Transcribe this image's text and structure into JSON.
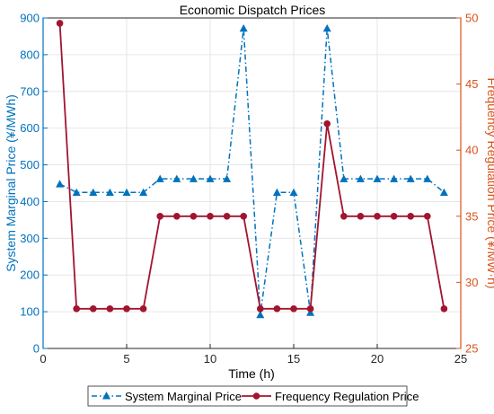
{
  "chart_data": {
    "type": "line",
    "title": "Economic Dispatch Prices",
    "xlabel": "Time (h)",
    "ylabel_left": "System Marginal Price (¥/MWh)",
    "ylabel_right": "Frequency Regulation Price (¥/MW·h)",
    "xlim": [
      0,
      25
    ],
    "ylim_left": [
      0,
      900
    ],
    "ylim_right": [
      25,
      50
    ],
    "x_ticks": [
      0,
      5,
      10,
      15,
      20,
      25
    ],
    "y_ticks_left": [
      0,
      100,
      200,
      300,
      400,
      500,
      600,
      700,
      800,
      900
    ],
    "y_ticks_right": [
      25,
      30,
      35,
      40,
      45,
      50
    ],
    "grid": true,
    "legend_position": "bottom",
    "x": [
      1,
      2,
      3,
      4,
      5,
      6,
      7,
      8,
      9,
      10,
      11,
      12,
      13,
      14,
      15,
      16,
      17,
      18,
      19,
      20,
      21,
      22,
      23,
      24
    ],
    "series": [
      {
        "name": "System Marginal Price",
        "axis": "left",
        "color": "#0072BD",
        "line_style": "dash-dot",
        "marker": "triangle",
        "values": [
          448,
          425,
          425,
          425,
          425,
          425,
          462,
          462,
          462,
          462,
          462,
          872,
          92,
          425,
          425,
          98,
          872,
          462,
          462,
          462,
          462,
          462,
          462,
          425
        ]
      },
      {
        "name": "Frequency Regulation Price",
        "axis": "right",
        "color": "#A2142F",
        "line_style": "solid",
        "marker": "circle",
        "values": [
          49.6,
          28,
          28,
          28,
          28,
          28,
          35,
          35,
          35,
          35,
          35,
          35,
          28,
          28,
          28,
          28,
          42,
          35,
          35,
          35,
          35,
          35,
          35,
          28
        ]
      }
    ]
  },
  "colors": {
    "left_axis": "#0072BD",
    "right_axis": "#D95319",
    "grid": "#e6e6e6"
  }
}
